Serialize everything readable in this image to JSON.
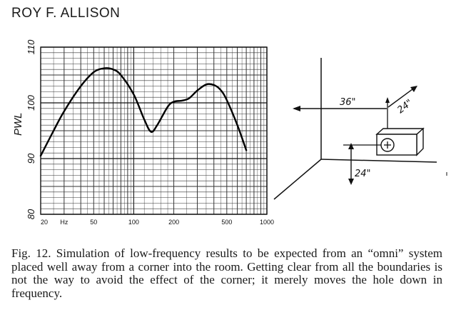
{
  "header": {
    "author": "ROY F. ALLISON"
  },
  "chart_data": {
    "type": "line",
    "ylabel": "PWL",
    "x_ticks": [
      {
        "value": 20,
        "label": "20"
      },
      {
        "value": 30,
        "label": "Hz"
      },
      {
        "value": 50,
        "label": "50"
      },
      {
        "value": 100,
        "label": "100"
      },
      {
        "value": 200,
        "label": "200"
      },
      {
        "value": 500,
        "label": "500"
      },
      {
        "value": 1000,
        "label": "1000"
      }
    ],
    "y_ticks": [
      {
        "value": 80,
        "label": "80"
      },
      {
        "value": 90,
        "label": "90"
      },
      {
        "value": 100,
        "label": "100"
      },
      {
        "value": 110,
        "label": "110"
      }
    ],
    "xlim": [
      20,
      1000
    ],
    "ylim": [
      80,
      110
    ],
    "x_scale": "log",
    "grid": true,
    "series": [
      {
        "x": [
          20,
          25,
          30,
          40,
          50,
          60,
          70,
          80,
          100,
          120,
          135,
          150,
          180,
          200,
          230,
          260,
          300,
          350,
          400,
          450,
          500,
          600,
          700
        ],
        "values": [
          90.5,
          95,
          98.5,
          103,
          105.5,
          106.2,
          106,
          105,
          101.5,
          97,
          94.8,
          96,
          99.3,
          100.2,
          100.4,
          100.8,
          102.2,
          103.3,
          103.2,
          102.3,
          100.5,
          96,
          91.5
        ]
      }
    ]
  },
  "diagram": {
    "dim_horizontal": "36\"",
    "dim_diagonal": "24\"",
    "dim_vertical": "24\""
  },
  "caption": {
    "text": "Fig. 12. Simulation of low-frequency results to be expected from an “omni” system placed well away from a corner into the room. Getting clear from all the boundaries is not the way to avoid the effect of the corner; it merely moves the hole down in frequency."
  }
}
